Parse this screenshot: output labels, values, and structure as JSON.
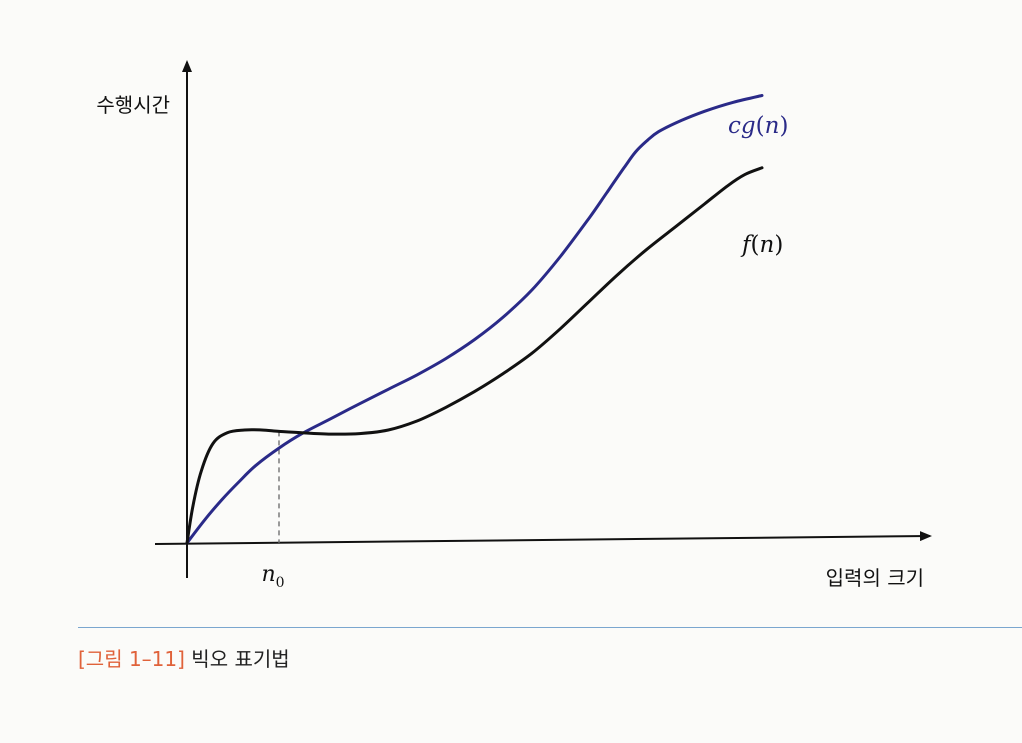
{
  "chart_data": {
    "type": "line",
    "ylabel": "수행시간",
    "xlabel": "입력의 크기",
    "threshold_label": "n",
    "threshold_subscript": "0",
    "series": [
      {
        "name": "cg(n)",
        "name_parts": {
          "c": "c",
          "g": "g",
          "open": "(",
          "n": "n",
          "close": ")"
        },
        "color": "#2a2a88",
        "x": [
          0,
          0.3,
          0.6,
          0.9,
          1.2,
          1.6,
          2.0,
          2.5,
          3.0,
          3.5,
          4.0,
          4.5,
          5.0,
          5.5,
          6.0,
          6.5,
          7.0,
          7.3,
          7.6,
          7.8,
          8.0,
          8.2,
          8.6,
          9.0,
          9.5,
          10.0
        ],
        "y": [
          0,
          0.5,
          0.95,
          1.35,
          1.72,
          2.1,
          2.42,
          2.75,
          3.08,
          3.4,
          3.72,
          4.08,
          4.5,
          5.0,
          5.6,
          6.35,
          7.2,
          7.75,
          8.3,
          8.65,
          8.9,
          9.1,
          9.35,
          9.55,
          9.75,
          9.9
        ]
      },
      {
        "name": "f(n)",
        "name_parts": {
          "f": "f",
          "open": "(",
          "n": "n",
          "close": ")"
        },
        "color": "#111111",
        "x": [
          0,
          0.1,
          0.25,
          0.45,
          0.7,
          1.0,
          1.3,
          1.6,
          2.0,
          2.5,
          3.0,
          3.5,
          4.0,
          4.5,
          5.0,
          5.5,
          6.0,
          6.5,
          7.0,
          7.5,
          8.0,
          8.5,
          9.0,
          9.4,
          9.7,
          10.0
        ],
        "y": [
          0,
          0.8,
          1.6,
          2.2,
          2.44,
          2.5,
          2.5,
          2.47,
          2.44,
          2.41,
          2.42,
          2.5,
          2.7,
          3.0,
          3.35,
          3.75,
          4.2,
          4.75,
          5.35,
          5.95,
          6.5,
          7.0,
          7.5,
          7.9,
          8.15,
          8.3
        ]
      }
    ],
    "n0": 1.6,
    "xlim": [
      0,
      12.5
    ],
    "ylim": [
      0,
      12
    ],
    "grid": false,
    "legend": "inline labels at line ends"
  },
  "caption": {
    "number": "[그림 1–11]",
    "title": "빅오 표기법"
  }
}
